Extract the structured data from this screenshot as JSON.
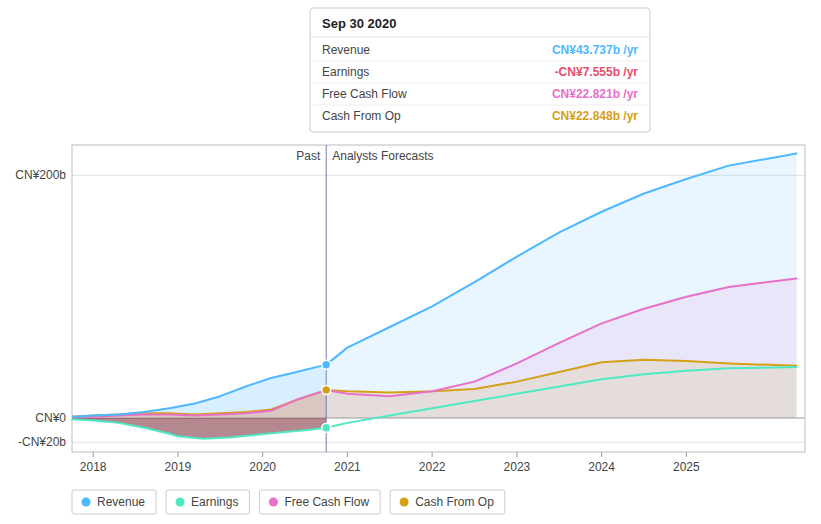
{
  "chart_data": {
    "type": "line",
    "xlim": [
      2017.75,
      2026.4
    ],
    "ylim": [
      -28,
      225
    ],
    "xticks": [
      2018,
      2019,
      2020,
      2021,
      2022,
      2023,
      2024,
      2025
    ],
    "yticks": [
      {
        "value": -20,
        "label": "  -CN¥20b"
      },
      {
        "value": 0,
        "label": "  CN¥0"
      },
      {
        "value": 200,
        "label": "  CN¥200b"
      }
    ],
    "grid": true,
    "legend": "bottom",
    "divider": {
      "x": 2020.75,
      "labels": [
        "Past",
        "Analysts Forecasts"
      ]
    },
    "tooltip": {
      "title": "Sep 30 2020",
      "rows": [
        {
          "label": "Revenue",
          "value": "CN¥43.737b /yr",
          "color": "#4db8ff"
        },
        {
          "label": "Earnings",
          "value": "-CN¥7.555b /yr",
          "color": "#e84d6e"
        },
        {
          "label": "Free Cash Flow",
          "value": "CN¥22.821b /yr",
          "color": "#e870c8"
        },
        {
          "label": "Cash From Op",
          "value": "CN¥22.848b /yr",
          "color": "#d4a017"
        }
      ]
    },
    "series": [
      {
        "name": "Revenue",
        "type": "area",
        "color": "#4db8ff",
        "x": [
          2017.75,
          2018.0,
          2018.3,
          2018.6,
          2018.9,
          2019.2,
          2019.5,
          2019.8,
          2020.1,
          2020.4,
          2020.75,
          2020.75,
          2021.0,
          2021.5,
          2022.0,
          2022.5,
          2023.0,
          2023.5,
          2024.0,
          2024.5,
          2025.0,
          2025.5,
          2026.3
        ],
        "values": [
          1,
          2,
          3,
          5,
          8,
          12,
          18,
          26,
          33,
          38,
          44,
          44,
          58,
          75,
          92,
          112,
          133,
          153,
          170,
          185,
          197,
          208,
          218
        ],
        "divider_value": 44
      },
      {
        "name": "Earnings",
        "type": "line",
        "color": "#4de8c4",
        "negative_color": "#6b1020",
        "x": [
          2017.75,
          2018.0,
          2018.3,
          2018.6,
          2018.9,
          2019.0,
          2019.3,
          2019.6,
          2019.9,
          2020.2,
          2020.5,
          2020.75,
          2020.75,
          2021.0,
          2021.5,
          2022.0,
          2022.5,
          2023.0,
          2023.5,
          2024.0,
          2024.5,
          2025.0,
          2025.5,
          2026.3
        ],
        "values": [
          -1,
          -2,
          -4,
          -8,
          -13,
          -15,
          -17,
          -16,
          -14,
          -12,
          -10,
          -8,
          -8,
          -4,
          2,
          8,
          14,
          20,
          26,
          32,
          36,
          39,
          41,
          42
        ],
        "divider_value": -8
      },
      {
        "name": "Free Cash Flow",
        "type": "area",
        "color": "#e870c8",
        "x": [
          2017.75,
          2018.0,
          2018.3,
          2018.6,
          2018.9,
          2019.2,
          2019.5,
          2019.8,
          2020.1,
          2020.4,
          2020.75,
          2020.75,
          2021.0,
          2021.5,
          2022.0,
          2022.5,
          2023.0,
          2023.5,
          2024.0,
          2024.5,
          2025.0,
          2025.5,
          2026.3
        ],
        "values": [
          1,
          1,
          2,
          3,
          3,
          2,
          3,
          4,
          6,
          15,
          23,
          23,
          20,
          18,
          22,
          30,
          45,
          62,
          78,
          90,
          100,
          108,
          115
        ]
      },
      {
        "name": "Cash From Op",
        "type": "area",
        "color": "#d4a017",
        "x": [
          2017.75,
          2018.0,
          2018.3,
          2018.6,
          2018.9,
          2019.2,
          2019.5,
          2019.8,
          2020.1,
          2020.4,
          2020.75,
          2020.75,
          2021.0,
          2021.5,
          2022.0,
          2022.5,
          2023.0,
          2023.5,
          2024.0,
          2024.5,
          2025.0,
          2025.5,
          2026.3
        ],
        "values": [
          1,
          2,
          3,
          4,
          4,
          3,
          4,
          5,
          7,
          15,
          23,
          23,
          22,
          21,
          22,
          24,
          30,
          38,
          46,
          48,
          47,
          45,
          43
        ],
        "divider_value": 23
      }
    ]
  }
}
